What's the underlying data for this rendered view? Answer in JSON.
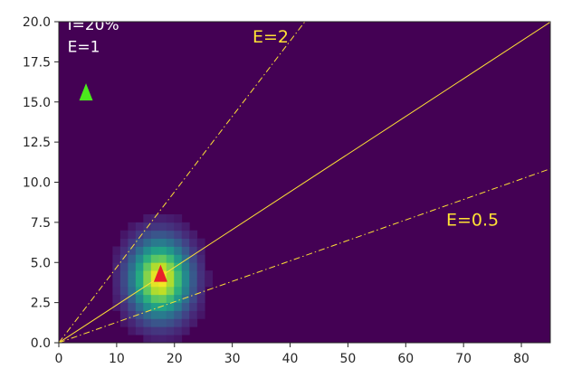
{
  "chart_data": {
    "type": "heatmap",
    "title": "",
    "xlabel": "",
    "ylabel": "",
    "xlim": [
      0,
      85
    ],
    "ylim": [
      0,
      20
    ],
    "xticks": [
      0,
      10,
      20,
      30,
      40,
      50,
      60,
      70,
      80
    ],
    "yticks": [
      0.0,
      2.5,
      5.0,
      7.5,
      10.0,
      12.5,
      15.0,
      17.5,
      20.0
    ],
    "xtick_labels": [
      "0",
      "10",
      "20",
      "30",
      "40",
      "50",
      "60",
      "70",
      "80"
    ],
    "ytick_labels": [
      "0.0",
      "2.5",
      "5.0",
      "7.5",
      "10.0",
      "12.5",
      "15.0",
      "17.5",
      "20.0"
    ],
    "grid": false,
    "colormap": "viridis",
    "background_color": "#440154",
    "heatmap": {
      "description_peak": {
        "x": 17.5,
        "y": 4.0
      },
      "sigma_x": 3.6,
      "sigma_y": 1.7
    },
    "lines": [
      {
        "label": "E=1",
        "slope": 0.235,
        "style": "solid",
        "color": "#ffe135"
      },
      {
        "label": "E=2",
        "slope": 0.47,
        "style": "dashdot",
        "color": "#ffe135"
      },
      {
        "label": "E=0.5",
        "slope": 0.1275,
        "style": "dashdot",
        "color": "#ffe135"
      }
    ],
    "markers": [
      {
        "name": "red-marker",
        "x": 17.6,
        "y": 4.3,
        "shape": "triangle",
        "color": "#e8202a"
      },
      {
        "name": "green-marker",
        "x": 4.7,
        "y": 15.6,
        "shape": "triangle",
        "color": "#4bea1c"
      }
    ],
    "annotations": [
      {
        "text": "I=20%",
        "x": 1.5,
        "y": 19.5,
        "color": "#ffffff"
      },
      {
        "text": "E=1",
        "x": 1.5,
        "y": 18.1,
        "color": "#ffffff"
      },
      {
        "text": "E=2",
        "x": 33.5,
        "y": 18.7,
        "color": "#ffe135"
      },
      {
        "text": "E=0.5",
        "x": 67.0,
        "y": 7.3,
        "color": "#ffe135"
      }
    ]
  }
}
